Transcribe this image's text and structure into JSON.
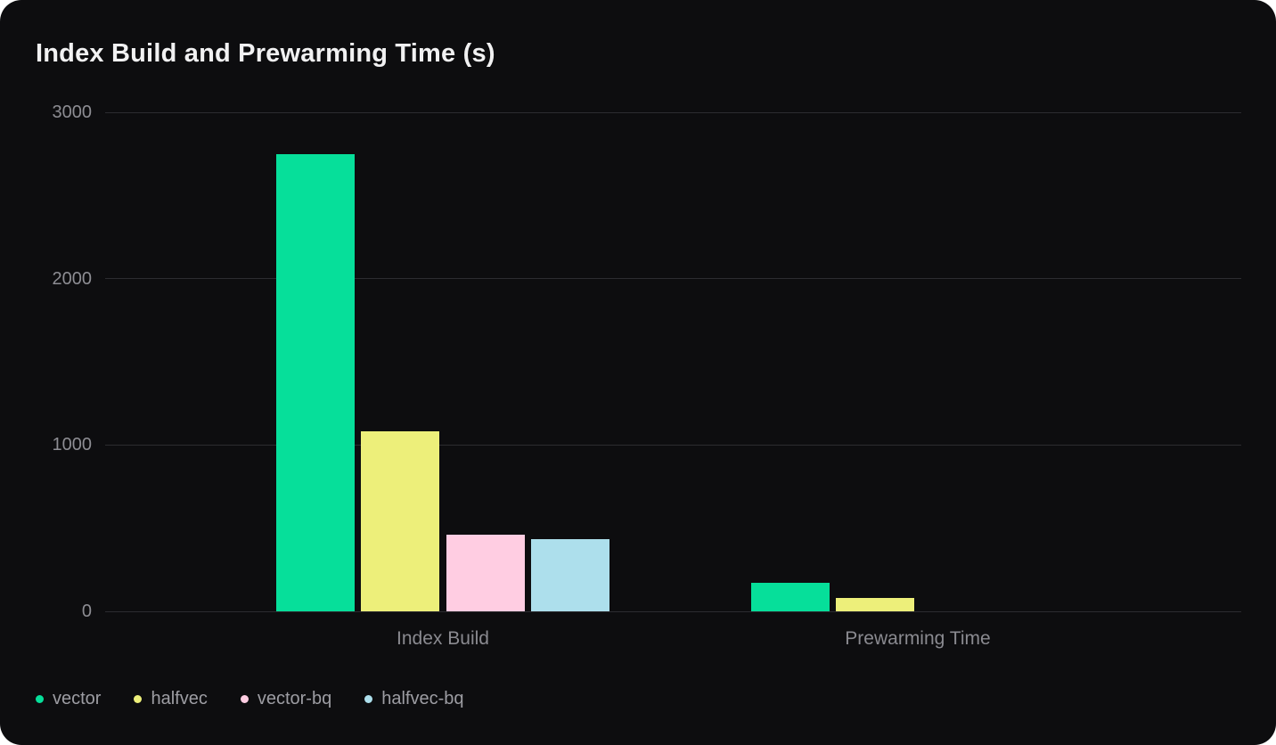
{
  "card": {
    "background": "#0d0d0f",
    "page_background": "#ffffff"
  },
  "chart_data": {
    "type": "bar",
    "title": "Index Build and Prewarming Time (s)",
    "categories": [
      "Index Build",
      "Prewarming Time"
    ],
    "series": [
      {
        "name": "vector",
        "color": "#06df9a",
        "values": [
          2750,
          170
        ]
      },
      {
        "name": "halfvec",
        "color": "#edef7a",
        "values": [
          1080,
          80
        ]
      },
      {
        "name": "vector-bq",
        "color": "#ffcde2",
        "values": [
          460,
          0
        ]
      },
      {
        "name": "halfvec-bq",
        "color": "#addfec",
        "values": [
          435,
          0
        ]
      }
    ],
    "y_ticks": [
      0,
      1000,
      2000,
      3000
    ],
    "ylim": [
      0,
      3000
    ],
    "xlabel": "",
    "ylabel": "",
    "grid": true,
    "grid_color": "#2c2c30",
    "tick_label_color": "#8d8d93",
    "category_label_color": "#8a8a90",
    "legend_text_color": "#9d9da3",
    "title_color": "#f1f1f2",
    "legend_position": "bottom-left"
  }
}
